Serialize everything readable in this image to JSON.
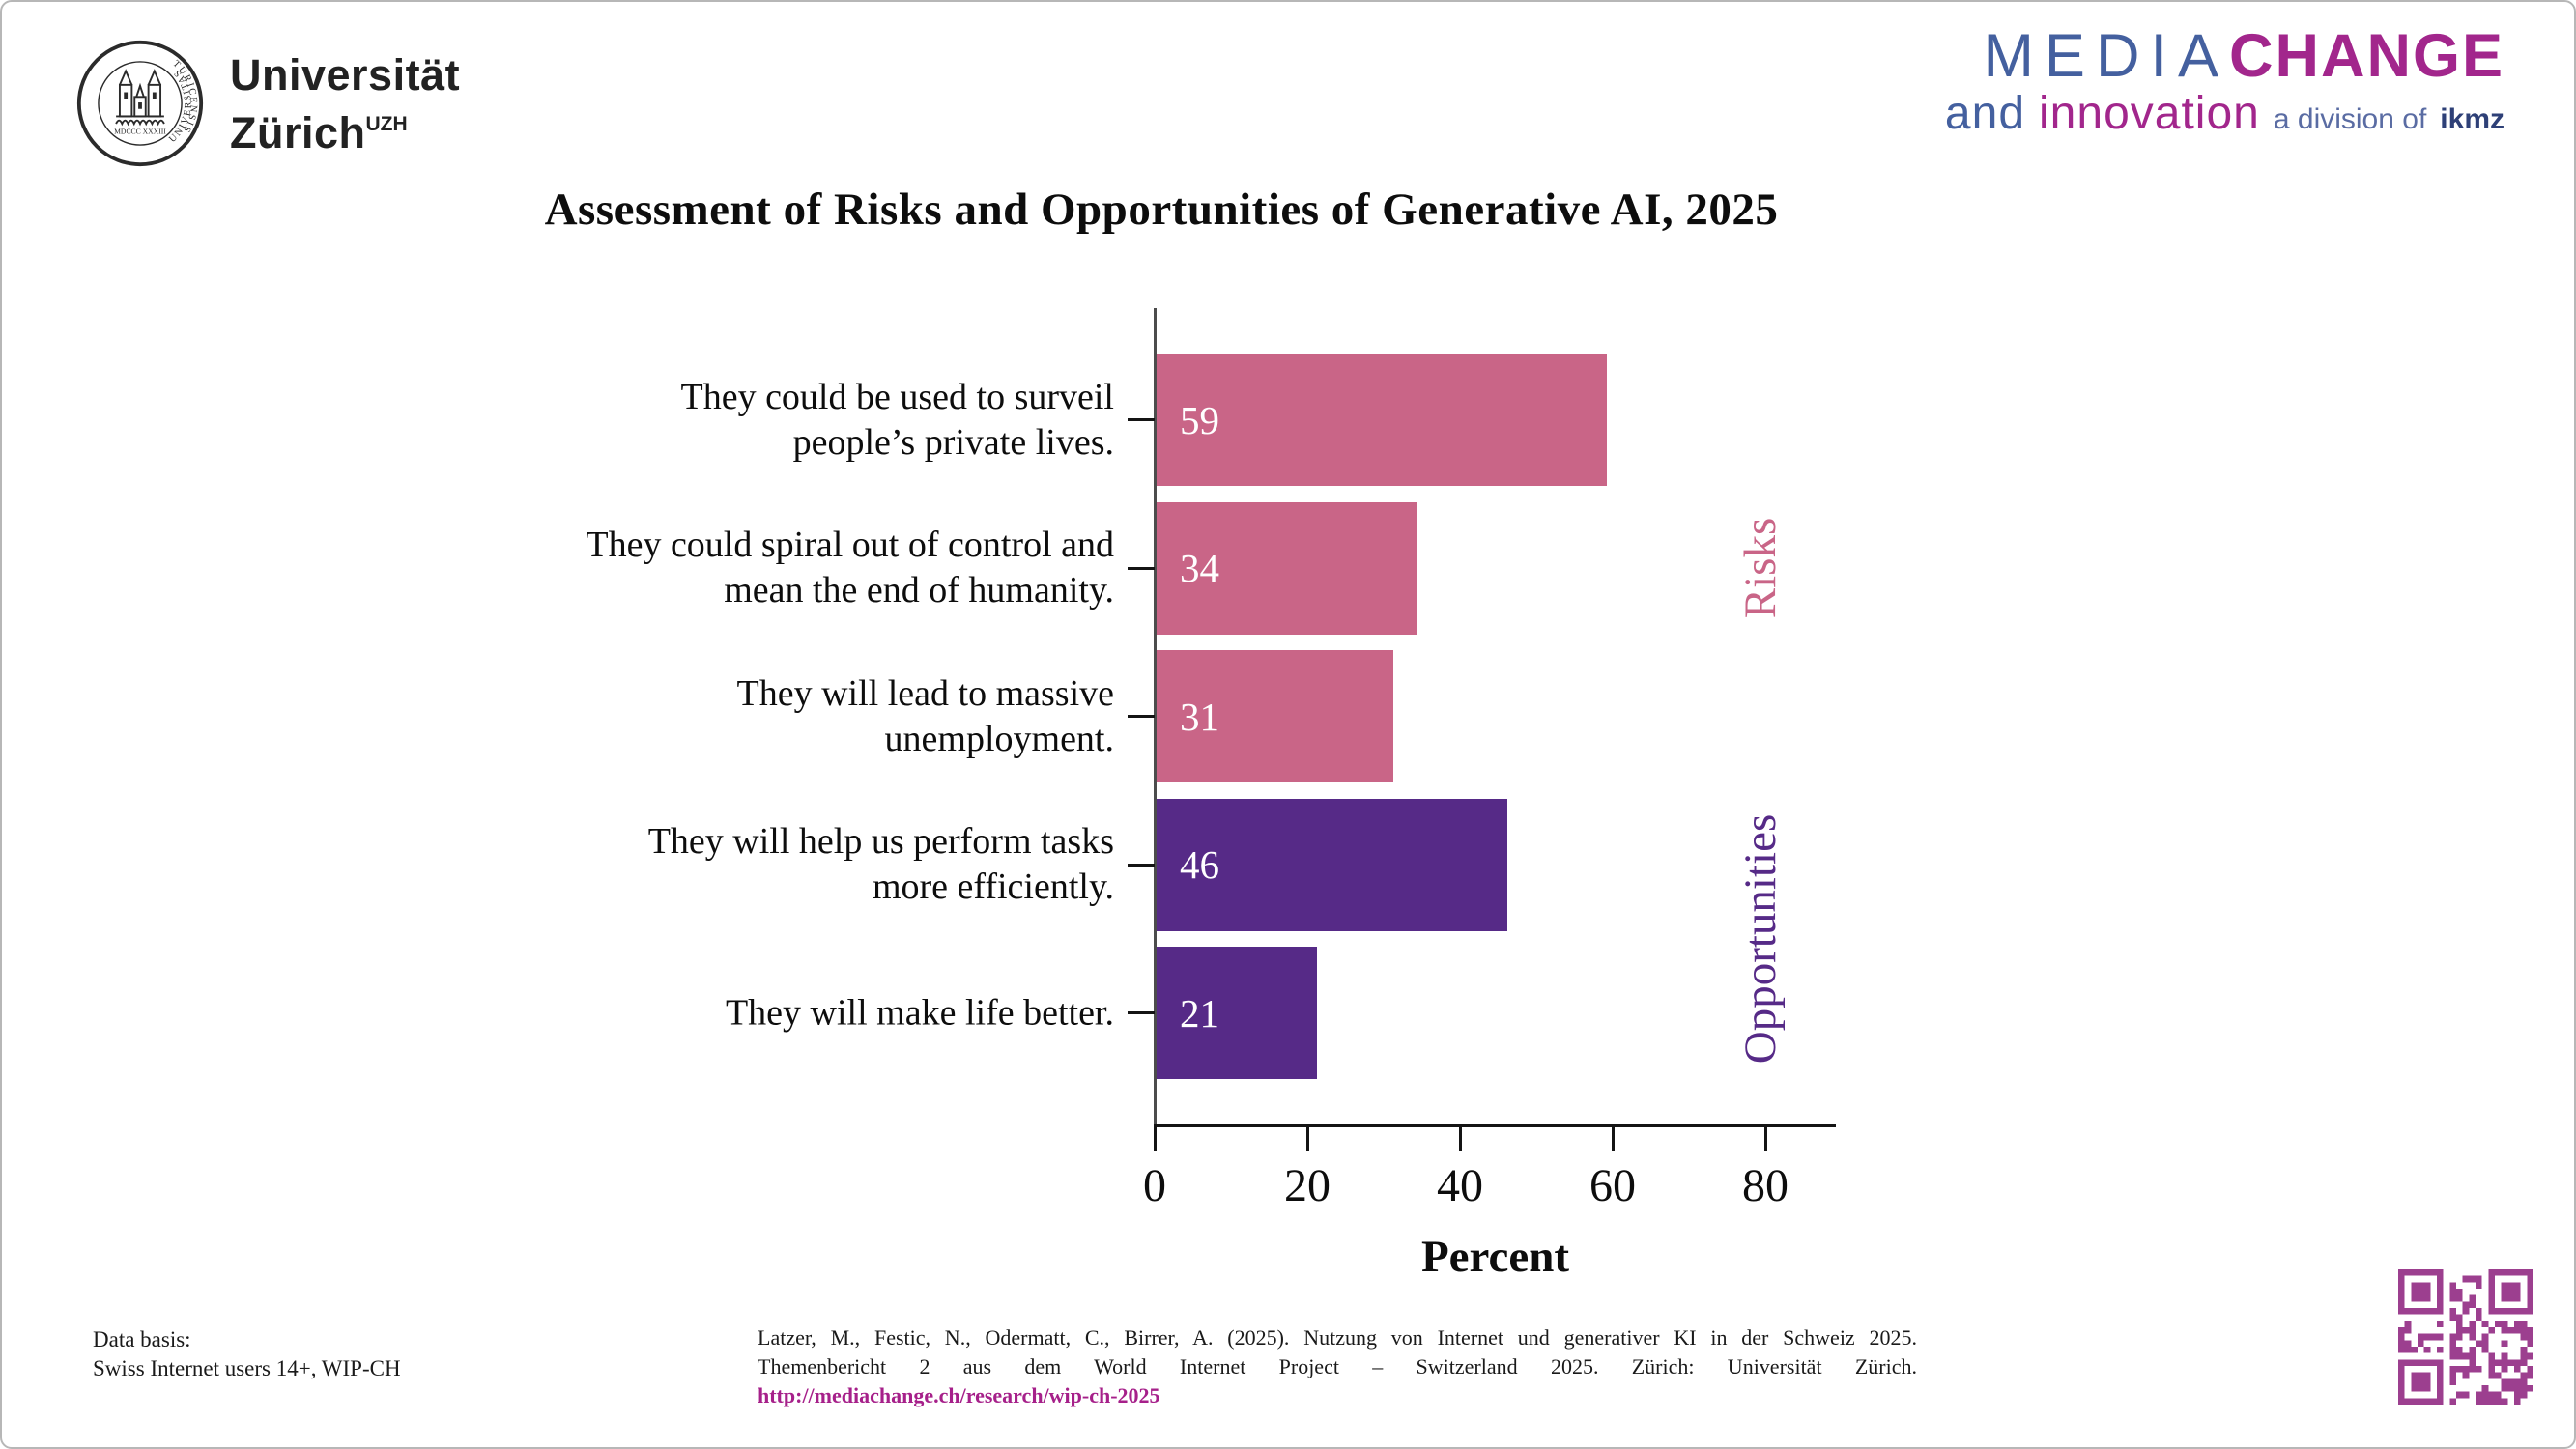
{
  "header": {
    "uzh": {
      "name_line1": "Universität",
      "name_line2": "Zürich",
      "name_sup": "UZH",
      "seal_left": "UNIVERSITAS",
      "seal_right": "TURICENSIS",
      "seal_bottom": "MDCCC XXXIII"
    },
    "mediachange": {
      "word1": "MEDIA",
      "word2": "CHANGE",
      "and_word": "and",
      "innovation_word": "innovation",
      "division": "a division of",
      "ikmz": "ikmz"
    }
  },
  "chart_data": {
    "type": "bar",
    "orientation": "horizontal",
    "title": "Assessment of Risks and Opportunities of Generative AI, 2025",
    "categories": [
      "They could be used to surveil people’s private lives.",
      "They could spiral out of control and mean the end of humanity.",
      "They will lead to massive unemployment.",
      "They will help us perform tasks more efficiently.",
      "They will make life better."
    ],
    "category_lines": [
      [
        "They could be used to surveil",
        "people’s private lives."
      ],
      [
        "They could spiral out of control and",
        "mean the end of humanity."
      ],
      [
        "They will lead to massive",
        "unemployment."
      ],
      [
        "They will help us perform tasks",
        "more efficiently."
      ],
      [
        "They will make life better."
      ]
    ],
    "values": [
      59,
      34,
      31,
      46,
      21
    ],
    "groups": [
      "Risks",
      "Risks",
      "Risks",
      "Opportunities",
      "Opportunities"
    ],
    "group_colors": {
      "Risks": "#c96587",
      "Opportunities": "#562a87"
    },
    "value_label_color": "#ffffff",
    "xlabel": "Percent",
    "xticks": [
      0,
      20,
      40,
      60,
      80
    ],
    "xlim": [
      0,
      89
    ],
    "grid": false,
    "legend_position": "right-rotated"
  },
  "footer": {
    "data_basis": [
      "Data basis:",
      "Swiss Internet users 14+, WIP-CH"
    ],
    "citation_lines": [
      "Latzer, M., Festic, N., Odermatt, C., Birrer, A. (2025). Nutzung von Internet und generativer KI in der Schweiz 2025.",
      "Themenbericht 2 aus dem World Internet Project – Switzerland 2025. Zürich: Universität Zürich."
    ],
    "citation_link": "http://mediachange.ch/research/wip-ch-2025"
  },
  "colors": {
    "risk_pink": "#c96587",
    "opportunity_purple": "#562a87",
    "link_magenta": "#a6208a",
    "qr_magenta": "#9c3f8f",
    "logo_blue": "#44609f",
    "logo_magenta": "#a2268c",
    "ikmz_navy": "#2e4077",
    "axis_black": "#141414"
  }
}
